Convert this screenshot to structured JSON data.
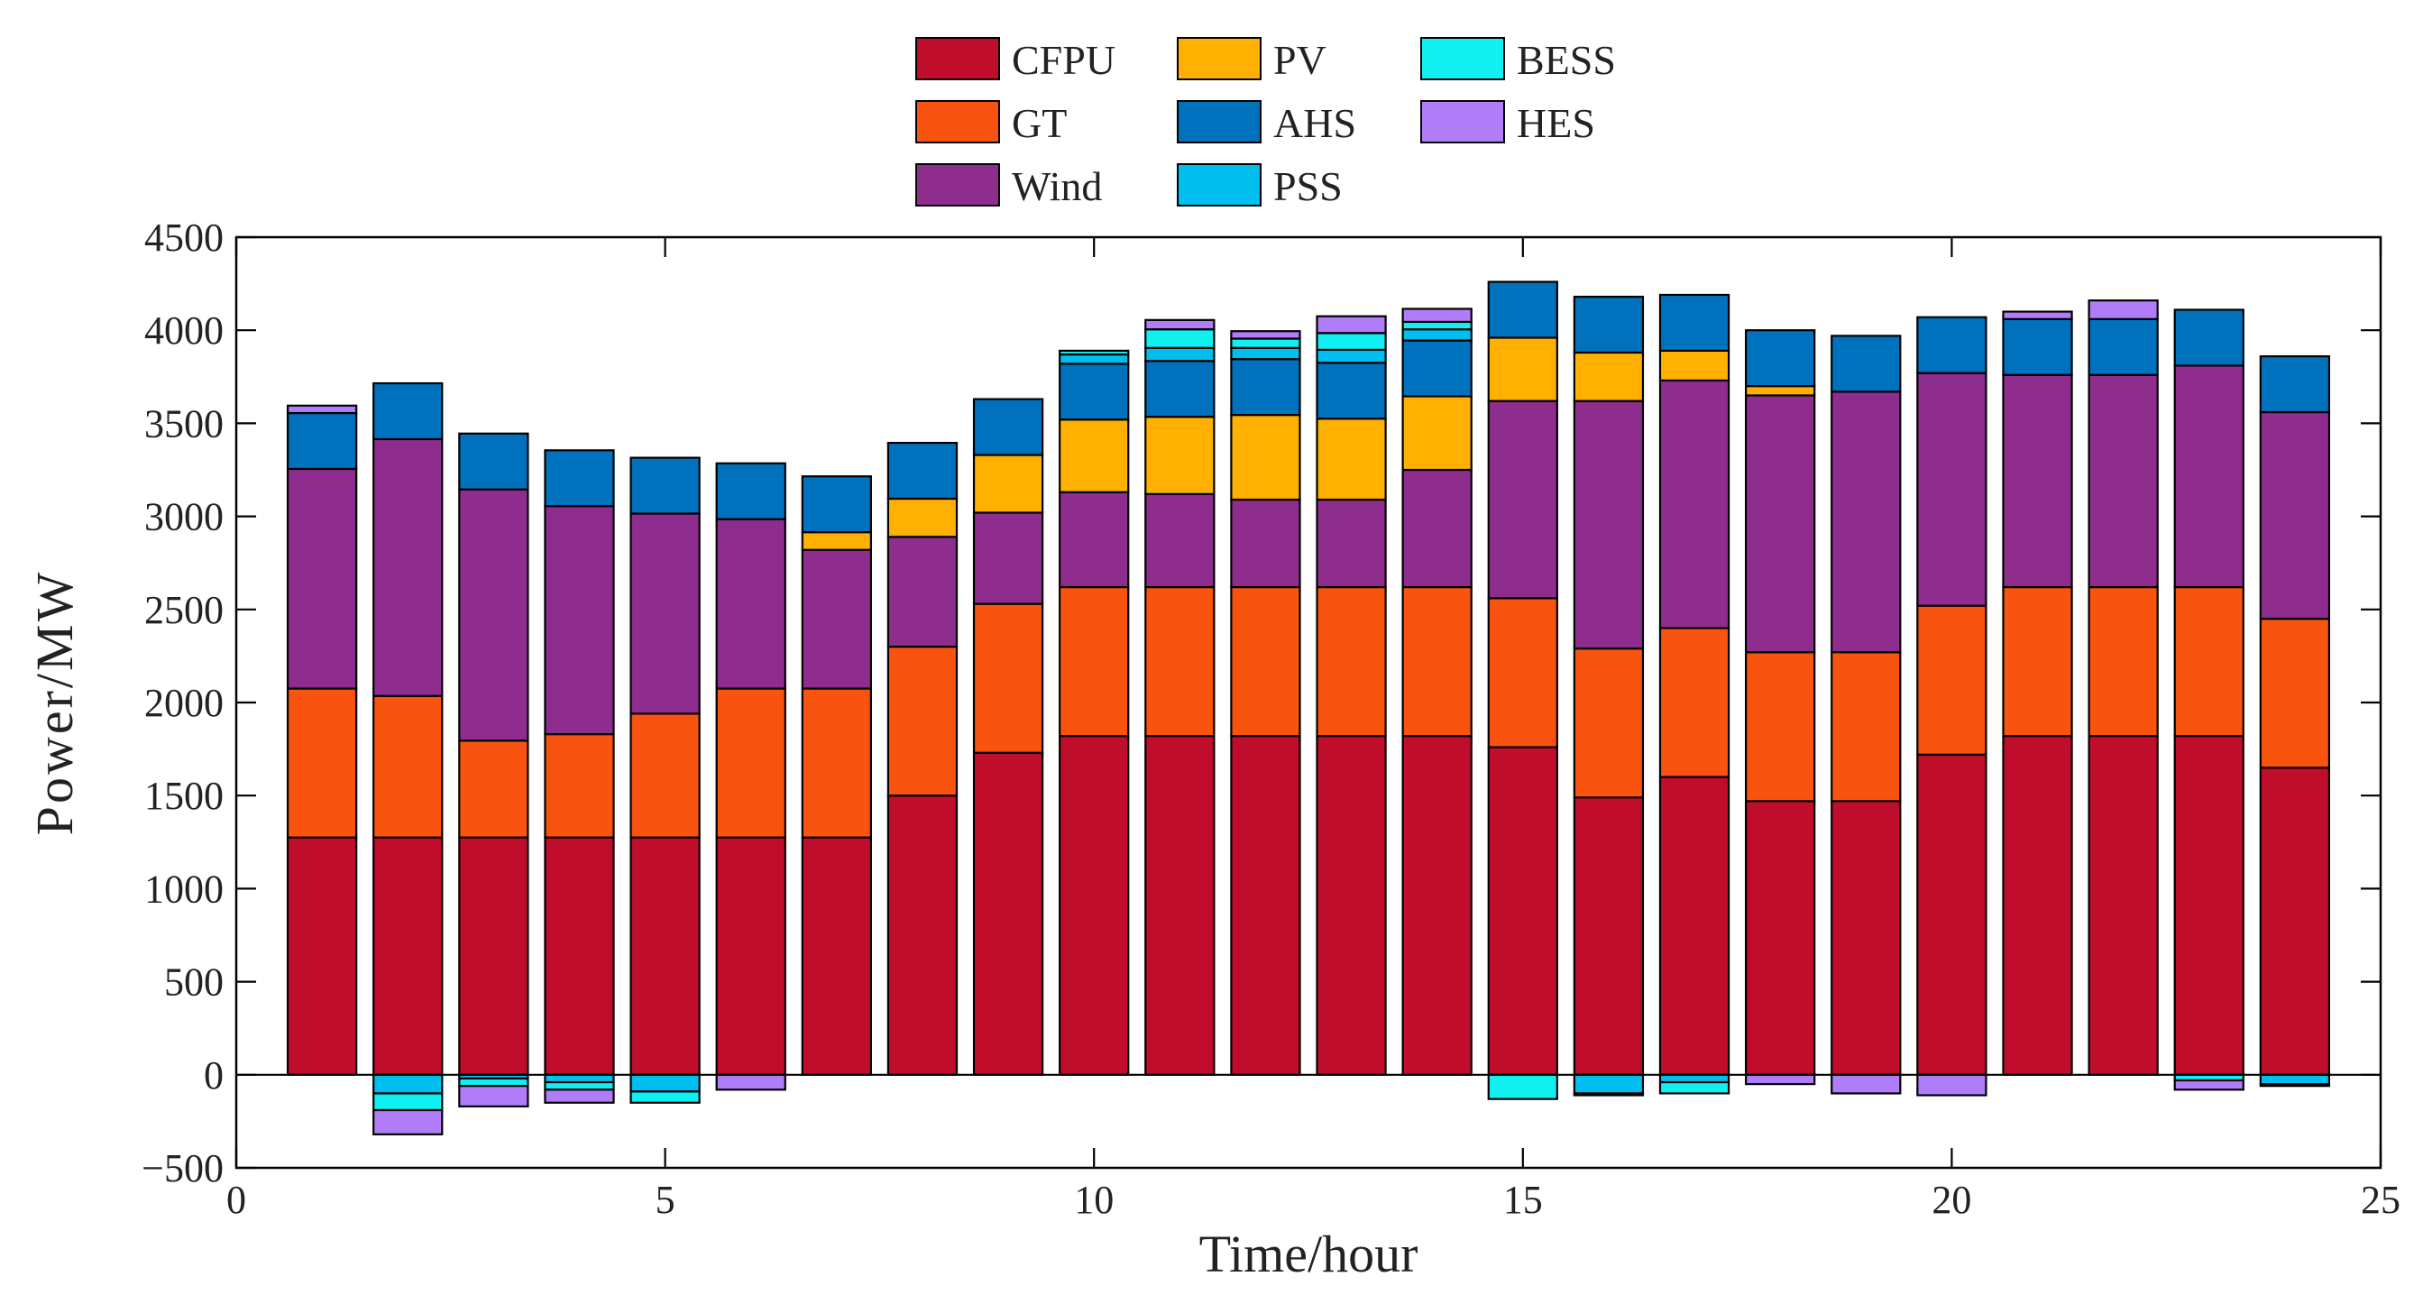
{
  "chart_data": {
    "type": "bar",
    "stacked": true,
    "title": "",
    "xlabel": "Time/hour",
    "ylabel": "Power/MW",
    "xlim": [
      0,
      25
    ],
    "ylim": [
      -500,
      4500
    ],
    "xticks": [
      0,
      5,
      10,
      15,
      20,
      25
    ],
    "yticks": [
      -500,
      0,
      500,
      1000,
      1500,
      2000,
      2500,
      3000,
      3500,
      4000,
      4500
    ],
    "x": [
      1,
      2,
      3,
      4,
      5,
      6,
      7,
      8,
      9,
      10,
      11,
      12,
      13,
      14,
      15,
      16,
      17,
      18,
      19,
      20,
      21,
      22,
      23,
      24
    ],
    "bar_width": 0.8,
    "grid": false,
    "legend_position": "top-center",
    "series": [
      {
        "name": "CFPU",
        "color": "#C00D2C",
        "values": [
          1275,
          1275,
          1275,
          1275,
          1275,
          1275,
          1275,
          1500,
          1730,
          1820,
          1820,
          1820,
          1820,
          1820,
          1760,
          1490,
          1600,
          1470,
          1470,
          1720,
          1820,
          1820,
          1820,
          1650
        ]
      },
      {
        "name": "GT",
        "color": "#F9540F",
        "values": [
          800,
          760,
          520,
          555,
          665,
          800,
          800,
          800,
          800,
          800,
          800,
          800,
          800,
          800,
          800,
          800,
          800,
          800,
          800,
          800,
          800,
          800,
          800,
          800
        ]
      },
      {
        "name": "Wind",
        "color": "#8F2D8F",
        "values": [
          1180,
          1380,
          1350,
          1225,
          1075,
          910,
          745,
          590,
          490,
          510,
          500,
          470,
          470,
          630,
          1060,
          1330,
          1330,
          1380,
          1400,
          1250,
          1140,
          1140,
          1190,
          1110
        ]
      },
      {
        "name": "PV",
        "color": "#FFB000",
        "values": [
          0,
          0,
          0,
          0,
          0,
          0,
          95,
          205,
          310,
          390,
          415,
          455,
          435,
          395,
          340,
          260,
          160,
          50,
          0,
          0,
          0,
          0,
          0,
          0
        ]
      },
      {
        "name": "AHS",
        "color": "#0072BD",
        "values": [
          300,
          300,
          300,
          300,
          300,
          300,
          300,
          300,
          300,
          300,
          300,
          300,
          300,
          300,
          300,
          300,
          300,
          300,
          300,
          300,
          300,
          300,
          300,
          300
        ]
      },
      {
        "name": "PSS",
        "color": "#00BFEE",
        "values": [
          0,
          -100,
          -20,
          -40,
          -90,
          0,
          0,
          0,
          0,
          50,
          70,
          60,
          70,
          60,
          0,
          -100,
          -40,
          0,
          0,
          0,
          0,
          0,
          0,
          -50
        ]
      },
      {
        "name": "BESS",
        "color": "#10F0F0",
        "values": [
          0,
          -90,
          -40,
          -40,
          -60,
          0,
          0,
          0,
          0,
          20,
          100,
          50,
          90,
          40,
          -130,
          -10,
          -60,
          0,
          0,
          0,
          0,
          0,
          -30,
          -10
        ]
      },
      {
        "name": "HES",
        "color": "#B07CF8",
        "values": [
          40,
          -130,
          -110,
          -70,
          0,
          -80,
          0,
          0,
          0,
          0,
          50,
          40,
          90,
          70,
          0,
          0,
          0,
          -50,
          -100,
          -110,
          40,
          100,
          -50,
          0
        ]
      }
    ]
  }
}
